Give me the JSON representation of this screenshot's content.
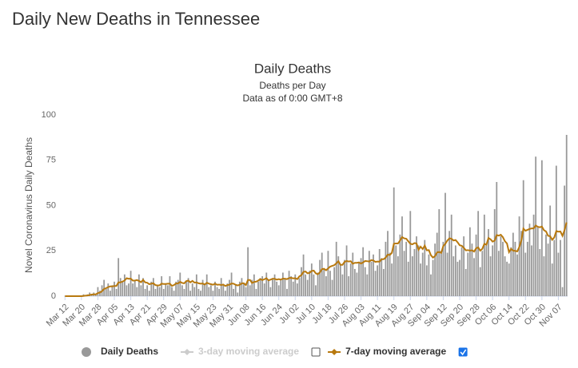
{
  "header": {
    "title": "Daily New Deaths in Tennessee"
  },
  "chart_data": {
    "type": "bar",
    "title": "Daily Deaths",
    "subtitle": [
      "Deaths per Day",
      "Data as of 0:00 GMT+8"
    ],
    "y_label": "Novel Coronavirus Daily Deaths",
    "categories": [
      "Mar 12",
      null,
      null,
      null,
      null,
      null,
      null,
      null,
      "Mar 20",
      null,
      null,
      null,
      null,
      null,
      null,
      null,
      "Mar 28",
      null,
      null,
      null,
      null,
      null,
      null,
      null,
      "Apr 05",
      null,
      null,
      null,
      null,
      null,
      null,
      null,
      "Apr 13",
      null,
      null,
      null,
      null,
      null,
      null,
      null,
      "Apr 21",
      null,
      null,
      null,
      null,
      null,
      null,
      null,
      "Apr 29",
      null,
      null,
      null,
      null,
      null,
      null,
      null,
      "May 07",
      null,
      null,
      null,
      null,
      null,
      null,
      null,
      "May 15",
      null,
      null,
      null,
      null,
      null,
      null,
      null,
      "May 23",
      null,
      null,
      null,
      null,
      null,
      null,
      null,
      "May 31",
      null,
      null,
      null,
      null,
      null,
      null,
      null,
      "Jun 08",
      null,
      null,
      null,
      null,
      null,
      null,
      null,
      "Jun 16",
      null,
      null,
      null,
      null,
      null,
      null,
      null,
      "Jun 24",
      null,
      null,
      null,
      null,
      null,
      null,
      null,
      "Jul 02",
      null,
      null,
      null,
      null,
      null,
      null,
      null,
      "Jul 10",
      null,
      null,
      null,
      null,
      null,
      null,
      null,
      "Jul 18",
      null,
      null,
      null,
      null,
      null,
      null,
      null,
      "Jul 26",
      null,
      null,
      null,
      null,
      null,
      null,
      null,
      "Aug 03",
      null,
      null,
      null,
      null,
      null,
      null,
      null,
      "Aug 11",
      null,
      null,
      null,
      null,
      null,
      null,
      null,
      "Aug 19",
      null,
      null,
      null,
      null,
      null,
      null,
      null,
      "Aug 27",
      null,
      null,
      null,
      null,
      null,
      null,
      null,
      "Sep 04",
      null,
      null,
      null,
      null,
      null,
      null,
      null,
      "Sep 12",
      null,
      null,
      null,
      null,
      null,
      null,
      null,
      "Sep 20",
      null,
      null,
      null,
      null,
      null,
      null,
      null,
      "Sep 28",
      null,
      null,
      null,
      null,
      null,
      null,
      null,
      "Oct 06",
      null,
      null,
      null,
      null,
      null,
      null,
      null,
      "Oct 14",
      null,
      null,
      null,
      null,
      null,
      null,
      null,
      "Oct 22",
      null,
      null,
      null,
      null,
      null,
      null,
      null,
      "Oct 30",
      null,
      null,
      null,
      null,
      null,
      null,
      null,
      "Nov 07",
      null,
      null,
      null,
      null
    ],
    "series": [
      {
        "name": "Daily Deaths",
        "color": "#999999",
        "kind": "bar",
        "visible": true,
        "values": [
          0,
          0,
          0,
          0,
          0,
          0,
          0,
          0,
          0,
          1,
          0,
          1,
          2,
          1,
          2,
          1,
          5,
          3,
          6,
          9,
          4,
          7,
          3,
          6,
          8,
          4,
          21,
          10,
          8,
          12,
          6,
          7,
          14,
          7,
          9,
          5,
          12,
          6,
          10,
          4,
          6,
          3,
          8,
          10,
          4,
          6,
          5,
          11,
          4,
          7,
          6,
          11,
          5,
          3,
          8,
          9,
          13,
          6,
          4,
          8,
          10,
          3,
          7,
          5,
          12,
          4,
          3,
          9,
          7,
          12,
          5,
          6,
          3,
          8,
          5,
          4,
          10,
          6,
          3,
          7,
          9,
          13,
          4,
          6,
          2,
          8,
          10,
          7,
          5,
          27,
          6,
          9,
          12,
          4,
          8,
          10,
          11,
          7,
          13,
          9,
          5,
          10,
          12,
          8,
          6,
          9,
          13,
          10,
          4,
          14,
          11,
          8,
          12,
          7,
          10,
          16,
          23,
          12,
          9,
          14,
          18,
          12,
          6,
          13,
          20,
          24,
          15,
          11,
          25,
          14,
          9,
          16,
          30,
          22,
          17,
          12,
          20,
          28,
          11,
          18,
          24,
          15,
          13,
          19,
          21,
          27,
          16,
          12,
          25,
          19,
          23,
          14,
          17,
          26,
          21,
          15,
          30,
          36,
          24,
          18,
          60,
          28,
          22,
          34,
          44,
          25,
          30,
          19,
          47,
          22,
          26,
          33,
          28,
          18,
          24,
          31,
          17,
          23,
          12,
          20,
          29,
          35,
          48,
          25,
          30,
          57,
          24,
          36,
          45,
          22,
          28,
          19,
          20,
          27,
          33,
          15,
          24,
          38,
          29,
          21,
          34,
          47,
          16,
          25,
          45,
          28,
          37,
          22,
          28,
          48,
          63,
          25,
          33,
          30,
          22,
          19,
          18,
          27,
          35,
          30,
          23,
          44,
          36,
          64,
          24,
          30,
          40,
          28,
          45,
          77,
          38,
          26,
          75,
          22,
          34,
          29,
          50,
          18,
          31,
          72,
          24,
          31,
          5,
          61,
          89
        ]
      },
      {
        "name": "7-day moving average",
        "color": "#b8790f",
        "kind": "line",
        "visible": true,
        "values": [
          0,
          0,
          0,
          0,
          0,
          0,
          0,
          0,
          0,
          0.1,
          0.3,
          0.4,
          0.6,
          0.9,
          1,
          1,
          1.7,
          2,
          2.7,
          4,
          4.4,
          5,
          5.4,
          5.4,
          5.6,
          5.6,
          7.6,
          7.6,
          8.1,
          8.6,
          9.9,
          9.6,
          9.7,
          8.6,
          8.6,
          8.9,
          8.4,
          7.7,
          9,
          7.6,
          7.4,
          6.6,
          6.9,
          7.1,
          6.1,
          5.9,
          6,
          6.9,
          6.7,
          6.7,
          6.9,
          6.9,
          5.7,
          6.1,
          7,
          7,
          7.9,
          7.3,
          7.1,
          8.3,
          8.6,
          7.6,
          8.4,
          7.5,
          7.6,
          7.1,
          6.9,
          7,
          6.4,
          7.4,
          6.9,
          6.6,
          6.3,
          6.9,
          6.3,
          6.4,
          6.1,
          6.4,
          5.6,
          6.1,
          6.3,
          7,
          6.9,
          6.3,
          5.9,
          6.3,
          7.1,
          7.1,
          6.1,
          8.9,
          8.9,
          7.3,
          7.9,
          8,
          8.6,
          9.4,
          8.9,
          9.3,
          9.9,
          8.7,
          9.1,
          9.6,
          9.6,
          9.1,
          9.4,
          9.1,
          9.7,
          9.6,
          9.4,
          10,
          10.1,
          9.8,
          9.9,
          9.4,
          10.9,
          11.6,
          13.4,
          13.6,
          12.6,
          12.9,
          13.9,
          14.1,
          12.6,
          12.1,
          13.1,
          14.9,
          15.1,
          14.3,
          15.3,
          16.3,
          16.7,
          17.1,
          18.1,
          19.3,
          17.3,
          17.3,
          18.9,
          19.4,
          19.1,
          19.3,
          17.9,
          18.4,
          18.4,
          18.6,
          18,
          18.6,
          19.4,
          19.3,
          19.1,
          19.9,
          19.7,
          18.9,
          19.1,
          19,
          20.4,
          20.4,
          21.3,
          22.9,
          22.7,
          23.9,
          28.9,
          29.1,
          29.1,
          30.7,
          32.6,
          31.9,
          31.7,
          30.3,
          28.9,
          28.6,
          29.3,
          29.1,
          25.6,
          27.3,
          26,
          27.9,
          25.3,
          25.4,
          22.6,
          21.3,
          22.1,
          24.1,
          24.4,
          23.9,
          27.6,
          28.9,
          30.7,
          31.9,
          31.7,
          30.7,
          31,
          29.7,
          28.1,
          27.8,
          26.7,
          25.3,
          25.4,
          25.1,
          25.3,
          24.6,
          26.4,
          26.9,
          25.1,
          26.1,
          28.9,
          28.4,
          32.1,
          31.4,
          30.1,
          30.6,
          33.7,
          33.4,
          33.9,
          32.6,
          30.3,
          29.1,
          24.3,
          26.1,
          25.1,
          25,
          24.7,
          27.1,
          30.7,
          37.3,
          36.1,
          36.6,
          37.1,
          37.4,
          37.4,
          39,
          38.3,
          38,
          38.4,
          36.4,
          35.7,
          33.3,
          33.1,
          31.1,
          32.4,
          35.9,
          35.6,
          35.7,
          33.3,
          36.4,
          40.7
        ]
      }
    ],
    "hidden_series": [
      {
        "name": "3-day moving average",
        "color": "#cccccc",
        "visible": false
      }
    ],
    "ylim": [
      0,
      100
    ],
    "yticks": [
      0,
      25,
      50,
      75,
      100
    ],
    "grid": false
  }
}
